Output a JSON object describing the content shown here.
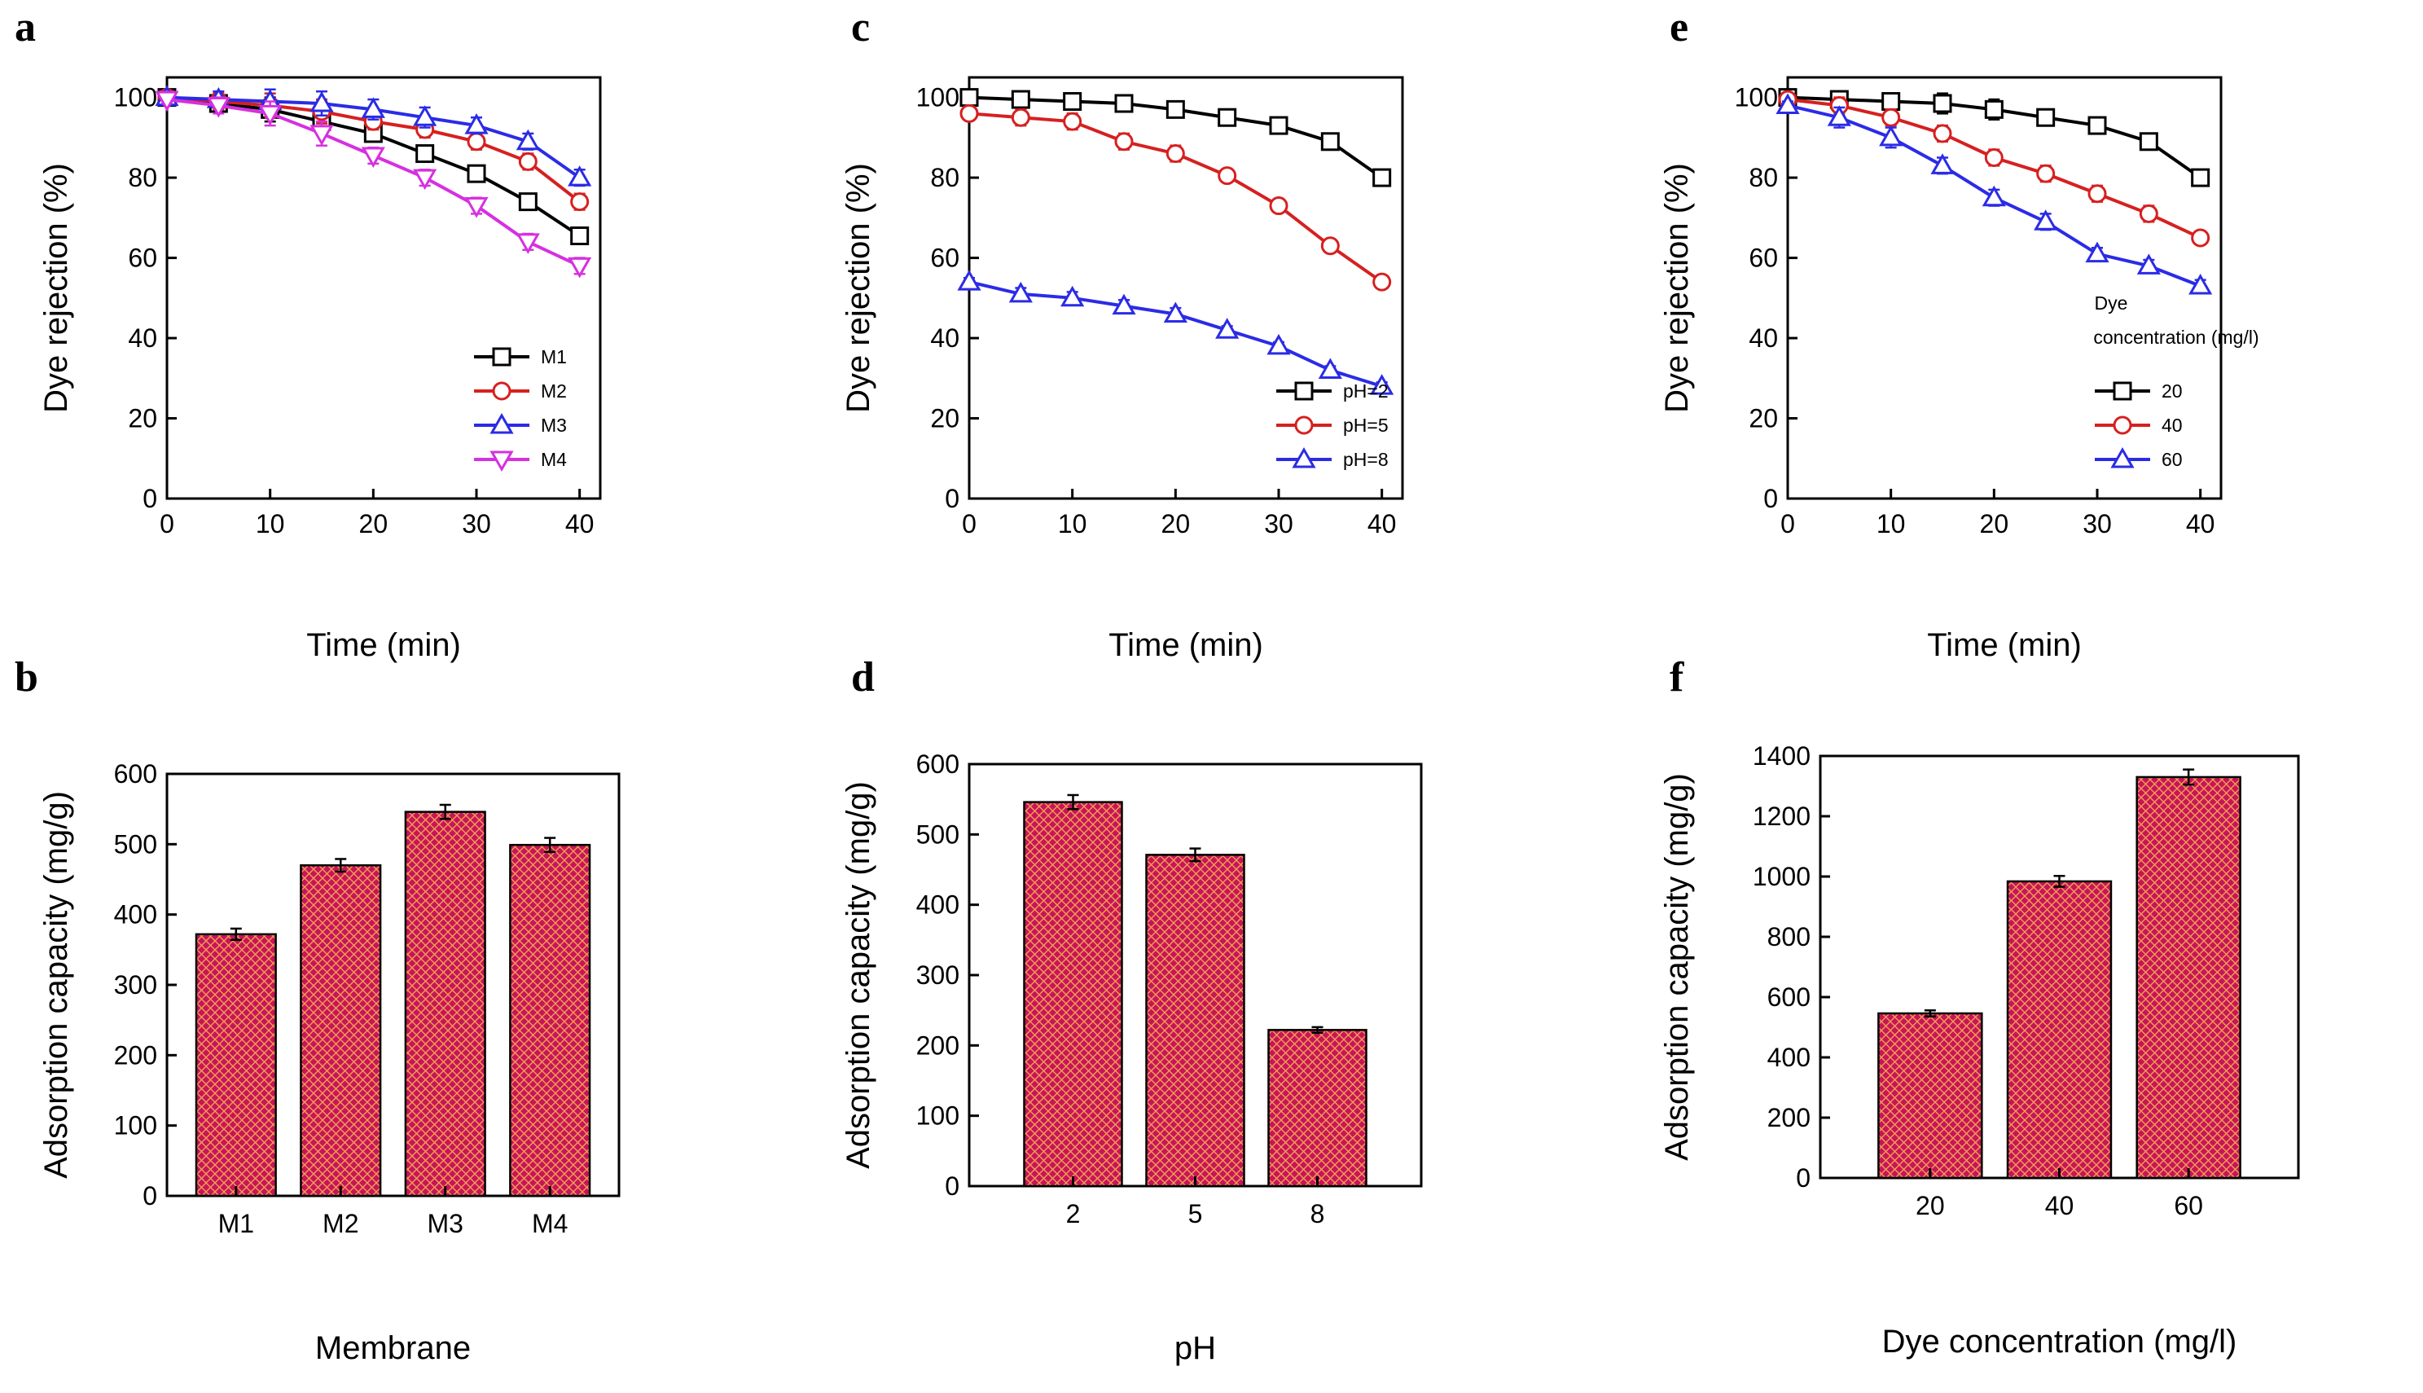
{
  "figure": {
    "colors": {
      "axis": "#000000",
      "series_black": "#000000",
      "series_red": "#d62020",
      "series_blue": "#2b2be6",
      "series_magenta": "#d630e0",
      "bar_fill": "#c8145a",
      "bar_hatch": "#f0a050"
    }
  },
  "chart_data": [
    {
      "id": "a",
      "panel_label": "a",
      "type": "line",
      "title": "",
      "xlabel": "Time (min)",
      "ylabel": "Dye rejection (%)",
      "xlim": [
        0,
        42
      ],
      "ylim": [
        0,
        105
      ],
      "xticks": [
        0,
        10,
        20,
        30,
        40
      ],
      "yticks": [
        0,
        20,
        40,
        60,
        80,
        100
      ],
      "grid": false,
      "legend_position": "lower-right",
      "x": [
        0,
        5,
        10,
        15,
        20,
        25,
        30,
        35,
        40
      ],
      "series": [
        {
          "name": "M1",
          "marker": "square",
          "color": "#000000",
          "values": [
            100,
            98.5,
            97,
            94,
            91,
            86,
            81,
            74,
            65.5
          ],
          "errors": [
            1,
            2,
            3,
            3,
            2,
            2,
            1.5,
            1.5,
            1.5
          ]
        },
        {
          "name": "M2",
          "marker": "circle",
          "color": "#d62020",
          "values": [
            100,
            99,
            98,
            96.5,
            94,
            92,
            89,
            84,
            74
          ],
          "errors": [
            1,
            2,
            3,
            3,
            2,
            2,
            2,
            2,
            2
          ]
        },
        {
          "name": "M3",
          "marker": "triangle-up",
          "color": "#2b2be6",
          "values": [
            100,
            99.5,
            99,
            98.5,
            97,
            95,
            93,
            89,
            80
          ],
          "errors": [
            1,
            2,
            3,
            3,
            2.5,
            2.5,
            2,
            2,
            2
          ]
        },
        {
          "name": "M4",
          "marker": "triangle-down",
          "color": "#d630e0",
          "values": [
            99.5,
            98,
            96,
            91,
            85.5,
            80,
            73,
            64,
            58
          ],
          "errors": [
            1,
            2,
            3,
            3,
            2,
            2,
            2,
            2,
            2
          ]
        }
      ]
    },
    {
      "id": "c",
      "panel_label": "c",
      "type": "line",
      "title": "",
      "xlabel": "Time (min)",
      "ylabel": "Dye rejection (%)",
      "xlim": [
        0,
        42
      ],
      "ylim": [
        0,
        105
      ],
      "xticks": [
        0,
        10,
        20,
        30,
        40
      ],
      "yticks": [
        0,
        20,
        40,
        60,
        80,
        100
      ],
      "grid": false,
      "legend_position": "lower-right",
      "x": [
        0,
        5,
        10,
        15,
        20,
        25,
        30,
        35,
        40
      ],
      "series": [
        {
          "name": "pH=2",
          "marker": "square",
          "color": "#000000",
          "values": [
            100,
            99.5,
            99,
            98.5,
            97,
            95,
            93,
            89,
            80
          ],
          "errors": [
            1,
            2,
            2,
            2,
            2,
            2,
            2,
            1.5,
            1.5
          ]
        },
        {
          "name": "pH=5",
          "marker": "circle",
          "color": "#d62020",
          "values": [
            96,
            95,
            94,
            89,
            86,
            80.5,
            73,
            63,
            54
          ],
          "errors": [
            1,
            2,
            2,
            2,
            2,
            1.5,
            1.5,
            1,
            1
          ]
        },
        {
          "name": "pH=8",
          "marker": "triangle-up",
          "color": "#2b2be6",
          "values": [
            54,
            51,
            50,
            48,
            46,
            42,
            38,
            32,
            28
          ],
          "errors": [
            1,
            1.5,
            1.5,
            1.5,
            1.5,
            1,
            1,
            1,
            1
          ]
        }
      ]
    },
    {
      "id": "e",
      "panel_label": "e",
      "type": "line",
      "title": "",
      "xlabel": "Time (min)",
      "ylabel": "Dye rejection (%)",
      "xlim": [
        0,
        42
      ],
      "ylim": [
        0,
        105
      ],
      "xticks": [
        0,
        10,
        20,
        30,
        40
      ],
      "yticks": [
        0,
        20,
        40,
        60,
        80,
        100
      ],
      "grid": false,
      "legend_position": "lower-right",
      "legend_title": [
        "Dye",
        "concentration (mg/l)"
      ],
      "x": [
        0,
        5,
        10,
        15,
        20,
        25,
        30,
        35,
        40
      ],
      "series": [
        {
          "name": "20",
          "marker": "square",
          "color": "#000000",
          "values": [
            100,
            99.5,
            99,
            98.5,
            97,
            95,
            93,
            89,
            80
          ],
          "errors": [
            1,
            2,
            2,
            2.5,
            2.5,
            2,
            2,
            2,
            2
          ]
        },
        {
          "name": "40",
          "marker": "circle",
          "color": "#d62020",
          "values": [
            99.5,
            98,
            95,
            91,
            85,
            81,
            76,
            71,
            65
          ],
          "errors": [
            1,
            2,
            2,
            2,
            2,
            2,
            2,
            2,
            1.5
          ]
        },
        {
          "name": "60",
          "marker": "triangle-up",
          "color": "#2b2be6",
          "values": [
            98,
            95,
            90,
            83,
            75,
            69,
            61,
            58,
            53
          ],
          "errors": [
            1,
            2.5,
            2.5,
            2,
            2,
            2,
            1.5,
            1.5,
            1.5
          ]
        }
      ]
    },
    {
      "id": "b",
      "panel_label": "b",
      "type": "bar",
      "title": "",
      "xlabel": "Membrane",
      "ylabel": "Adsorption capacity (mg/g)",
      "categories": [
        "M1",
        "M2",
        "M3",
        "M4"
      ],
      "values": [
        372,
        470,
        546,
        499
      ],
      "errors": [
        8,
        9,
        10,
        10
      ],
      "ylim": [
        0,
        600
      ],
      "yticks": [
        0,
        100,
        200,
        300,
        400,
        500,
        600
      ],
      "grid": false
    },
    {
      "id": "d",
      "panel_label": "d",
      "type": "bar",
      "title": "",
      "xlabel": "pH",
      "ylabel": "Adsorption capacity (mg/g)",
      "categories": [
        "2",
        "5",
        "8"
      ],
      "values": [
        546,
        471,
        222
      ],
      "errors": [
        10,
        9,
        4
      ],
      "ylim": [
        0,
        600
      ],
      "yticks": [
        0,
        100,
        200,
        300,
        400,
        500,
        600
      ],
      "grid": false
    },
    {
      "id": "f",
      "panel_label": "f",
      "type": "bar",
      "title": "",
      "xlabel": "Dye concentration (mg/l)",
      "ylabel": "Adsorption capacity (mg/g)",
      "categories": [
        "20",
        "40",
        "60"
      ],
      "values": [
        546,
        984,
        1330
      ],
      "errors": [
        10,
        18,
        25
      ],
      "ylim": [
        0,
        1400
      ],
      "yticks": [
        0,
        200,
        400,
        600,
        800,
        1000,
        1200,
        1400
      ],
      "grid": false
    }
  ]
}
